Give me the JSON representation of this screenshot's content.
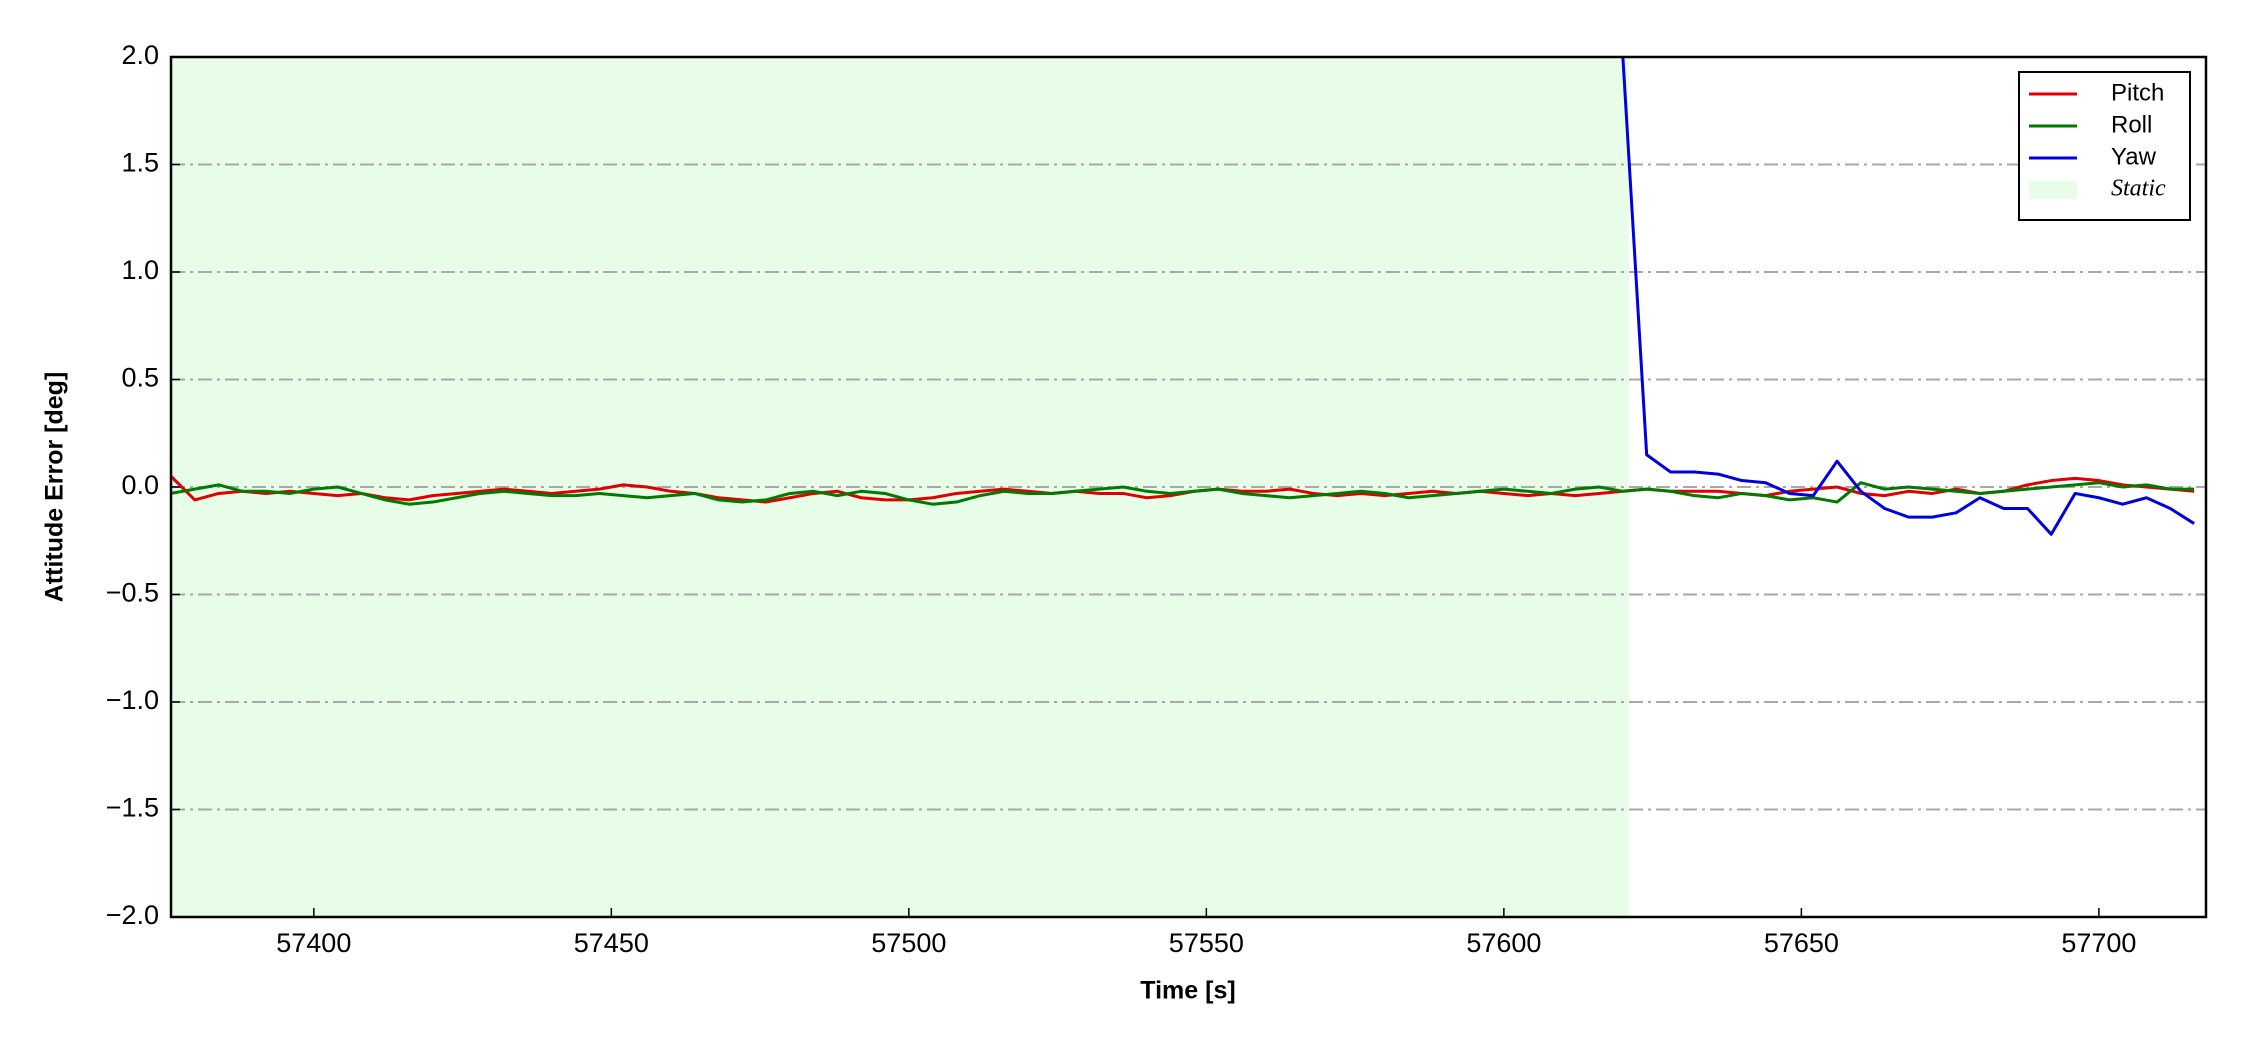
{
  "chart_data": {
    "type": "line",
    "xlabel": "Time [s]",
    "ylabel": "Attitude Error [deg]",
    "xlim": [
      57376,
      57718
    ],
    "ylim": [
      -2.0,
      2.0
    ],
    "xticks": [
      57400,
      57450,
      57500,
      57550,
      57600,
      57650,
      57700
    ],
    "yticks": [
      {
        "value": -2.0,
        "label": "−2.0"
      },
      {
        "value": -1.5,
        "label": "−1.5"
      },
      {
        "value": -1.0,
        "label": "−1.0"
      },
      {
        "value": -0.5,
        "label": "−0.5"
      },
      {
        "value": 0.0,
        "label": "0.0"
      },
      {
        "value": 0.5,
        "label": "0.5"
      },
      {
        "value": 1.0,
        "label": "1.0"
      },
      {
        "value": 1.5,
        "label": "1.5"
      },
      {
        "value": 2.0,
        "label": "2.0"
      }
    ],
    "grid": true,
    "legend": "upper right",
    "span": {
      "name": "Static",
      "start": 57376,
      "end": 57621,
      "color": "#e8fde8"
    },
    "x": [
      57376,
      57380,
      57384,
      57388,
      57392,
      57396,
      57400,
      57404,
      57408,
      57412,
      57416,
      57420,
      57424,
      57428,
      57432,
      57436,
      57440,
      57444,
      57448,
      57452,
      57456,
      57460,
      57464,
      57468,
      57472,
      57476,
      57480,
      57484,
      57488,
      57492,
      57496,
      57500,
      57504,
      57508,
      57512,
      57516,
      57520,
      57524,
      57528,
      57532,
      57536,
      57540,
      57544,
      57548,
      57552,
      57556,
      57560,
      57564,
      57568,
      57572,
      57576,
      57580,
      57584,
      57588,
      57592,
      57596,
      57600,
      57604,
      57608,
      57612,
      57616,
      57620,
      57624,
      57628,
      57632,
      57636,
      57640,
      57644,
      57648,
      57652,
      57656,
      57660,
      57664,
      57668,
      57672,
      57676,
      57680,
      57684,
      57688,
      57692,
      57696,
      57700,
      57704,
      57708,
      57712,
      57716
    ],
    "series": [
      {
        "name": "Pitch",
        "color": "#e00000",
        "values": [
          0.05,
          -0.06,
          -0.03,
          -0.02,
          -0.03,
          -0.02,
          -0.03,
          -0.04,
          -0.03,
          -0.05,
          -0.06,
          -0.04,
          -0.03,
          -0.02,
          -0.01,
          -0.02,
          -0.03,
          -0.02,
          -0.01,
          0.01,
          0.0,
          -0.02,
          -0.03,
          -0.05,
          -0.06,
          -0.07,
          -0.05,
          -0.03,
          -0.02,
          -0.05,
          -0.06,
          -0.06,
          -0.05,
          -0.03,
          -0.02,
          -0.01,
          -0.02,
          -0.03,
          -0.02,
          -0.03,
          -0.03,
          -0.05,
          -0.04,
          -0.02,
          -0.01,
          -0.02,
          -0.02,
          -0.01,
          -0.03,
          -0.04,
          -0.03,
          -0.04,
          -0.03,
          -0.02,
          -0.03,
          -0.02,
          -0.03,
          -0.04,
          -0.03,
          -0.04,
          -0.03,
          -0.02,
          -0.01,
          -0.02,
          -0.02,
          -0.02,
          -0.03,
          -0.04,
          -0.02,
          -0.01,
          0.0,
          -0.03,
          -0.04,
          -0.02,
          -0.03,
          -0.01,
          -0.03,
          -0.02,
          0.01,
          0.03,
          0.04,
          0.03,
          0.01,
          0.0,
          -0.01,
          -0.02
        ]
      },
      {
        "name": "Roll",
        "color": "#007a00",
        "values": [
          -0.03,
          -0.01,
          0.01,
          -0.02,
          -0.02,
          -0.03,
          -0.01,
          0.0,
          -0.03,
          -0.06,
          -0.08,
          -0.07,
          -0.05,
          -0.03,
          -0.02,
          -0.03,
          -0.04,
          -0.04,
          -0.03,
          -0.04,
          -0.05,
          -0.04,
          -0.03,
          -0.06,
          -0.07,
          -0.06,
          -0.03,
          -0.02,
          -0.04,
          -0.02,
          -0.03,
          -0.06,
          -0.08,
          -0.07,
          -0.04,
          -0.02,
          -0.03,
          -0.03,
          -0.02,
          -0.01,
          0.0,
          -0.02,
          -0.03,
          -0.02,
          -0.01,
          -0.03,
          -0.04,
          -0.05,
          -0.04,
          -0.03,
          -0.02,
          -0.03,
          -0.05,
          -0.04,
          -0.03,
          -0.02,
          -0.01,
          -0.02,
          -0.03,
          -0.01,
          0.0,
          -0.02,
          -0.01,
          -0.02,
          -0.04,
          -0.05,
          -0.03,
          -0.04,
          -0.06,
          -0.05,
          -0.07,
          0.02,
          -0.01,
          0.0,
          -0.01,
          -0.02,
          -0.03,
          -0.02,
          -0.01,
          0.0,
          0.01,
          0.02,
          0.0,
          0.01,
          -0.01,
          -0.01
        ]
      },
      {
        "name": "Yaw",
        "color": "#0000e0",
        "values": [
          null,
          null,
          null,
          null,
          null,
          null,
          null,
          null,
          null,
          null,
          null,
          null,
          null,
          null,
          null,
          null,
          null,
          null,
          null,
          null,
          null,
          null,
          null,
          null,
          null,
          null,
          null,
          null,
          null,
          null,
          null,
          null,
          null,
          null,
          null,
          null,
          null,
          null,
          null,
          null,
          null,
          null,
          null,
          null,
          null,
          null,
          null,
          null,
          null,
          null,
          null,
          null,
          null,
          null,
          null,
          null,
          null,
          null,
          null,
          null,
          null,
          2.0,
          0.15,
          0.07,
          0.07,
          0.06,
          0.03,
          0.02,
          -0.03,
          -0.04,
          0.12,
          -0.02,
          -0.1,
          -0.14,
          -0.14,
          -0.12,
          -0.05,
          -0.1,
          -0.1,
          -0.22,
          -0.03,
          -0.05,
          -0.08,
          -0.05,
          -0.1,
          -0.17
        ]
      }
    ]
  }
}
